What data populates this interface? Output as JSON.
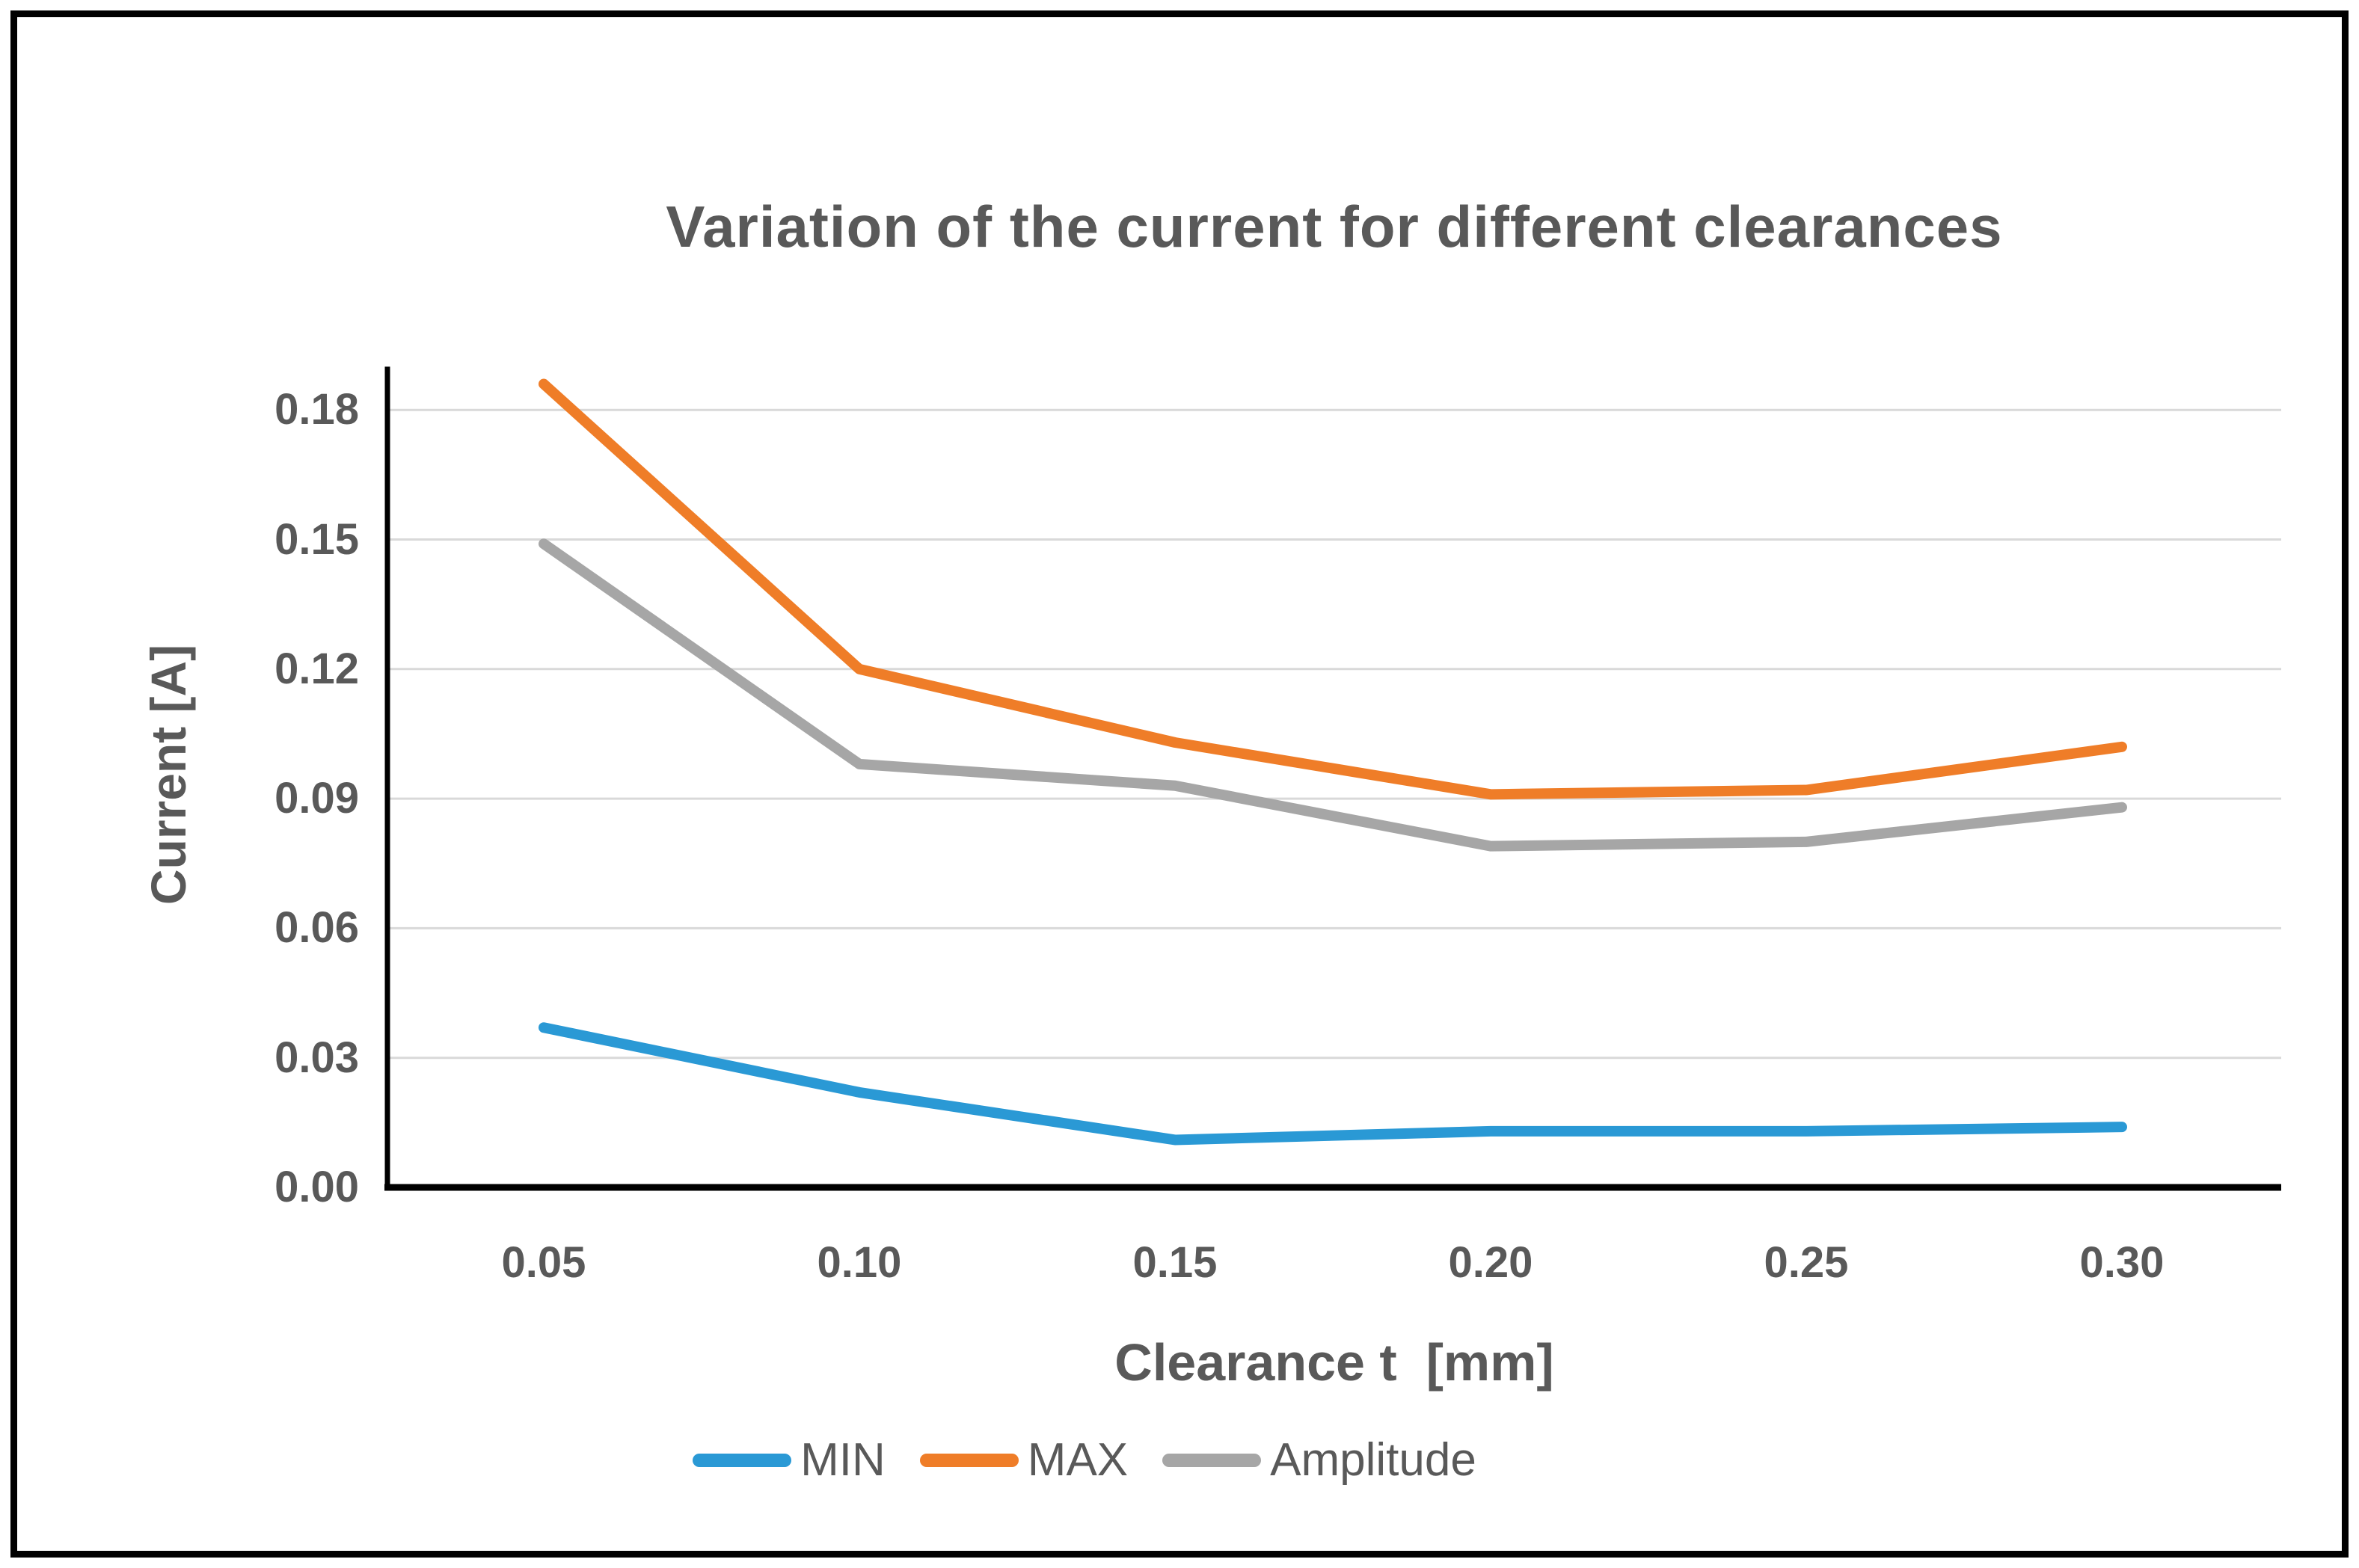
{
  "title": "Variation of the current for different clearances",
  "chart_data": {
    "type": "line",
    "title": "Variation of the current for different clearances",
    "xlabel": "Clearance t  [mm]",
    "ylabel": "Current [A]",
    "categories": [
      "0.05",
      "0.10",
      "0.15",
      "0.20",
      "0.25",
      "0.30"
    ],
    "series": [
      {
        "name": "MIN",
        "color": "#2A99D5",
        "values": [
          0.037,
          0.022,
          0.011,
          0.013,
          0.013,
          0.014
        ]
      },
      {
        "name": "MAX",
        "color": "#EF7D28",
        "values": [
          0.186,
          0.12,
          0.103,
          0.091,
          0.092,
          0.102
        ]
      },
      {
        "name": "Amplitude",
        "color": "#A6A6A6",
        "values": [
          0.149,
          0.098,
          0.093,
          0.079,
          0.08,
          0.088
        ]
      }
    ],
    "y_ticks": [
      0.0,
      0.03,
      0.06,
      0.09,
      0.12,
      0.15,
      0.18
    ],
    "y_tick_labels": [
      "0.00",
      "0.03",
      "0.06",
      "0.09",
      "0.12",
      "0.15",
      "0.18"
    ],
    "ylim": [
      0,
      0.19
    ],
    "grid": "horizontal",
    "legend_position": "bottom",
    "legend_entries": [
      "MIN",
      "MAX",
      "Amplitude"
    ],
    "colors": {
      "text": "#595959",
      "gridline": "#D9D9D9",
      "axis": "#000000",
      "background": "#FFFFFF",
      "frame_border": "#000000"
    }
  }
}
